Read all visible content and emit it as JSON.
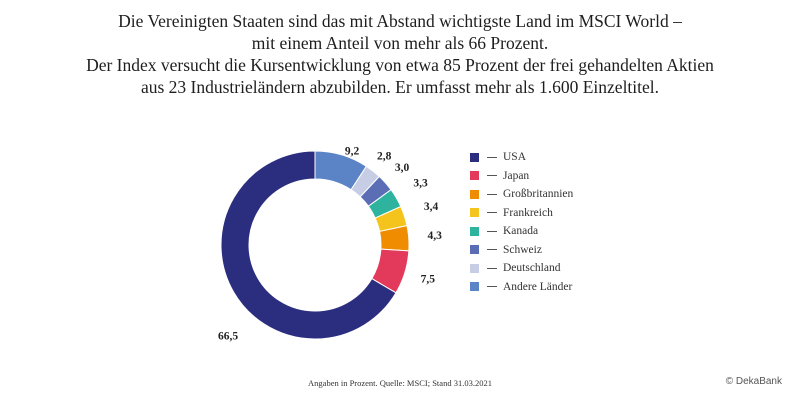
{
  "title_lines": [
    "Die Vereinigten Staaten sind das mit Abstand wichtigste Land im MSCI World –",
    "mit einem Anteil von mehr als 66 Prozent.",
    "Der Index versucht die Kursentwicklung von etwa 85 Prozent der frei gehandelten Aktien",
    "aus 23 Industrieländern abzubilden. Er umfasst mehr als 1.600 Einzeltitel."
  ],
  "chart_data": {
    "type": "pie",
    "donut": true,
    "categories": [
      "USA",
      "Japan",
      "Großbritannien",
      "Frankreich",
      "Kanada",
      "Schweiz",
      "Deutschland",
      "Andere Länder"
    ],
    "values": [
      66.5,
      7.5,
      4.3,
      3.4,
      3.3,
      3.0,
      2.8,
      9.2
    ],
    "value_labels": [
      "66,5",
      "7,5",
      "4,3",
      "3,4",
      "3,3",
      "3,0",
      "2,8",
      "9,2"
    ],
    "colors": [
      "#2b2e7f",
      "#e33a5b",
      "#f08c00",
      "#f5c41c",
      "#2db39e",
      "#5b6db5",
      "#c8cde6",
      "#5b84c6"
    ],
    "legend_position": "right"
  },
  "footer": "Angaben in Prozent. Quelle: MSCI; Stand 31.03.2021",
  "copyright": "© DekaBank"
}
